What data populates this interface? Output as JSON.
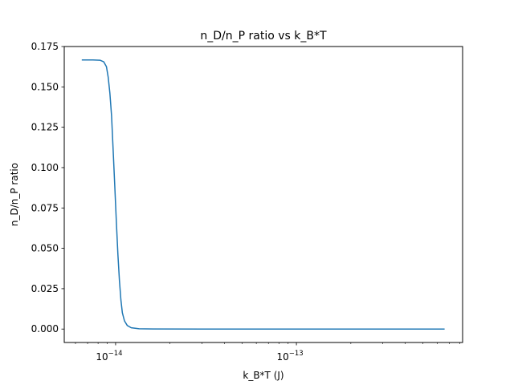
{
  "chart_data": {
    "type": "line",
    "title": "n_D/n_P ratio vs k_B*T",
    "xlabel": "k_B*T (J)",
    "ylabel": "n_D/n_P ratio",
    "xscale": "log",
    "xlim": [
      5.2e-15,
      8.3e-13
    ],
    "ylim": [
      -0.00833,
      0.175
    ],
    "grid": false,
    "y_ticks": [
      "0.000",
      "0.025",
      "0.050",
      "0.075",
      "0.100",
      "0.125",
      "0.150",
      "0.175"
    ],
    "x_major_ticks": [
      {
        "value": 1e-14,
        "base": "10",
        "exp": "−14"
      },
      {
        "value": 1e-13,
        "base": "10",
        "exp": "−13"
      }
    ],
    "series": [
      {
        "color": "#1f77b4",
        "x": [
          6.5e-15,
          7.5e-15,
          8.2e-15,
          8.6e-15,
          8.9e-15,
          9.1e-15,
          9.3e-15,
          9.5e-15,
          9.7e-15,
          9.9e-15,
          1.01e-14,
          1.03e-14,
          1.05e-14,
          1.07e-14,
          1.09e-14,
          1.12e-14,
          1.16e-14,
          1.22e-14,
          1.35e-14,
          1.6e-14,
          3e-14,
          1e-13,
          3e-13,
          6.6e-13
        ],
        "y": [
          0.1667,
          0.1667,
          0.1665,
          0.1655,
          0.1625,
          0.156,
          0.146,
          0.132,
          0.11,
          0.088,
          0.066,
          0.046,
          0.03,
          0.018,
          0.01,
          0.005,
          0.0022,
          0.0008,
          0.0002,
          3e-05,
          0.0,
          0.0,
          0.0,
          0.0
        ]
      }
    ]
  }
}
